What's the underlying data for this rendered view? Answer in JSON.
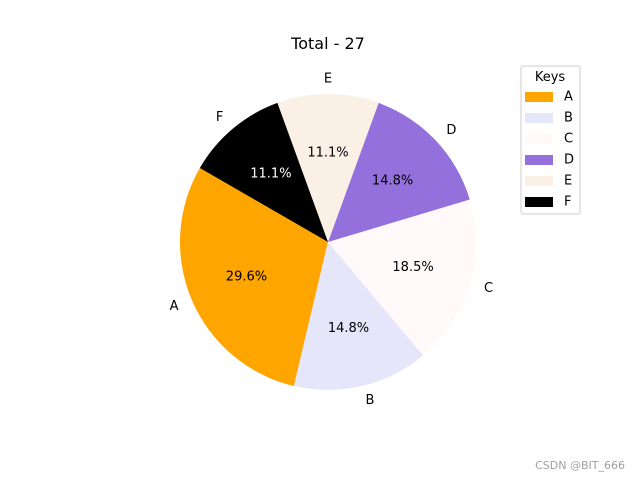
{
  "chart_data": {
    "type": "pie",
    "title": "Total - 27",
    "categories": [
      "A",
      "B",
      "C",
      "D",
      "E",
      "F"
    ],
    "values": [
      8,
      4,
      5,
      4,
      3,
      3
    ],
    "percent_labels": [
      "29.6%",
      "14.8%",
      "18.5%",
      "14.8%",
      "11.1%",
      "11.1%"
    ],
    "colors": [
      "#ffa500",
      "#e6e6fa",
      "#fffaf9",
      "#9370db",
      "#faf0e6",
      "#000000"
    ],
    "label_colors": [
      "#000000",
      "#000000",
      "#000000",
      "#000000",
      "#000000",
      "#ffffff"
    ],
    "start_angle_deg": 150,
    "direction": "counterclockwise",
    "legend": {
      "title": "Keys",
      "placement": "top-right",
      "entries": [
        "A",
        "B",
        "C",
        "D",
        "E",
        "F"
      ]
    }
  },
  "watermark": "CSDN @BIT_666"
}
